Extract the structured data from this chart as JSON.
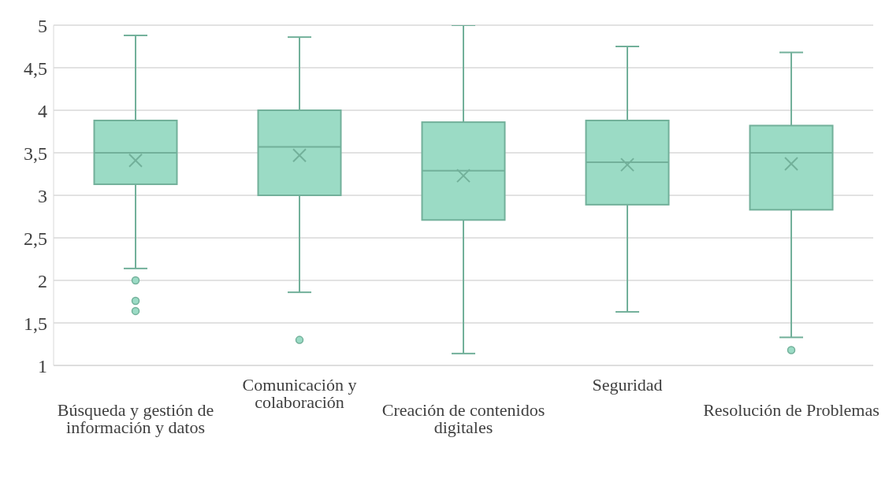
{
  "chart_data": {
    "type": "box",
    "categories": [
      "Búsqueda y gestión de información y datos",
      "Comunicación y colaboración",
      "Creación de contenidos digitales",
      "Seguridad",
      "Resolución de Problemas"
    ],
    "boxes": [
      {
        "low": 2.14,
        "q1": 3.13,
        "median": 3.5,
        "q3": 3.88,
        "high": 4.88,
        "mean": 3.41,
        "outliers": [
          2.0,
          1.76,
          1.64
        ]
      },
      {
        "low": 1.86,
        "q1": 3.0,
        "median": 3.57,
        "q3": 4.0,
        "high": 4.86,
        "mean": 3.47,
        "outliers": [
          1.3
        ]
      },
      {
        "low": 1.14,
        "q1": 2.71,
        "median": 3.29,
        "q3": 3.86,
        "high": 5.0,
        "mean": 3.23
      },
      {
        "low": 1.63,
        "q1": 2.89,
        "median": 3.39,
        "q3": 3.88,
        "high": 4.75,
        "mean": 3.36
      },
      {
        "low": 1.33,
        "q1": 2.83,
        "median": 3.5,
        "q3": 3.82,
        "high": 4.68,
        "mean": 3.37,
        "outliers": [
          1.18
        ]
      }
    ],
    "color": "#9bdbc5",
    "ylim": [
      1,
      5
    ],
    "yticks": [
      1,
      {
        "value": 1.5,
        "label": "1,5"
      },
      2,
      {
        "value": 2.5,
        "label": "2,5"
      },
      3,
      {
        "value": 3.5,
        "label": "3,5"
      },
      4,
      {
        "value": 4.5,
        "label": "4,5"
      },
      5
    ],
    "grid": "y"
  }
}
